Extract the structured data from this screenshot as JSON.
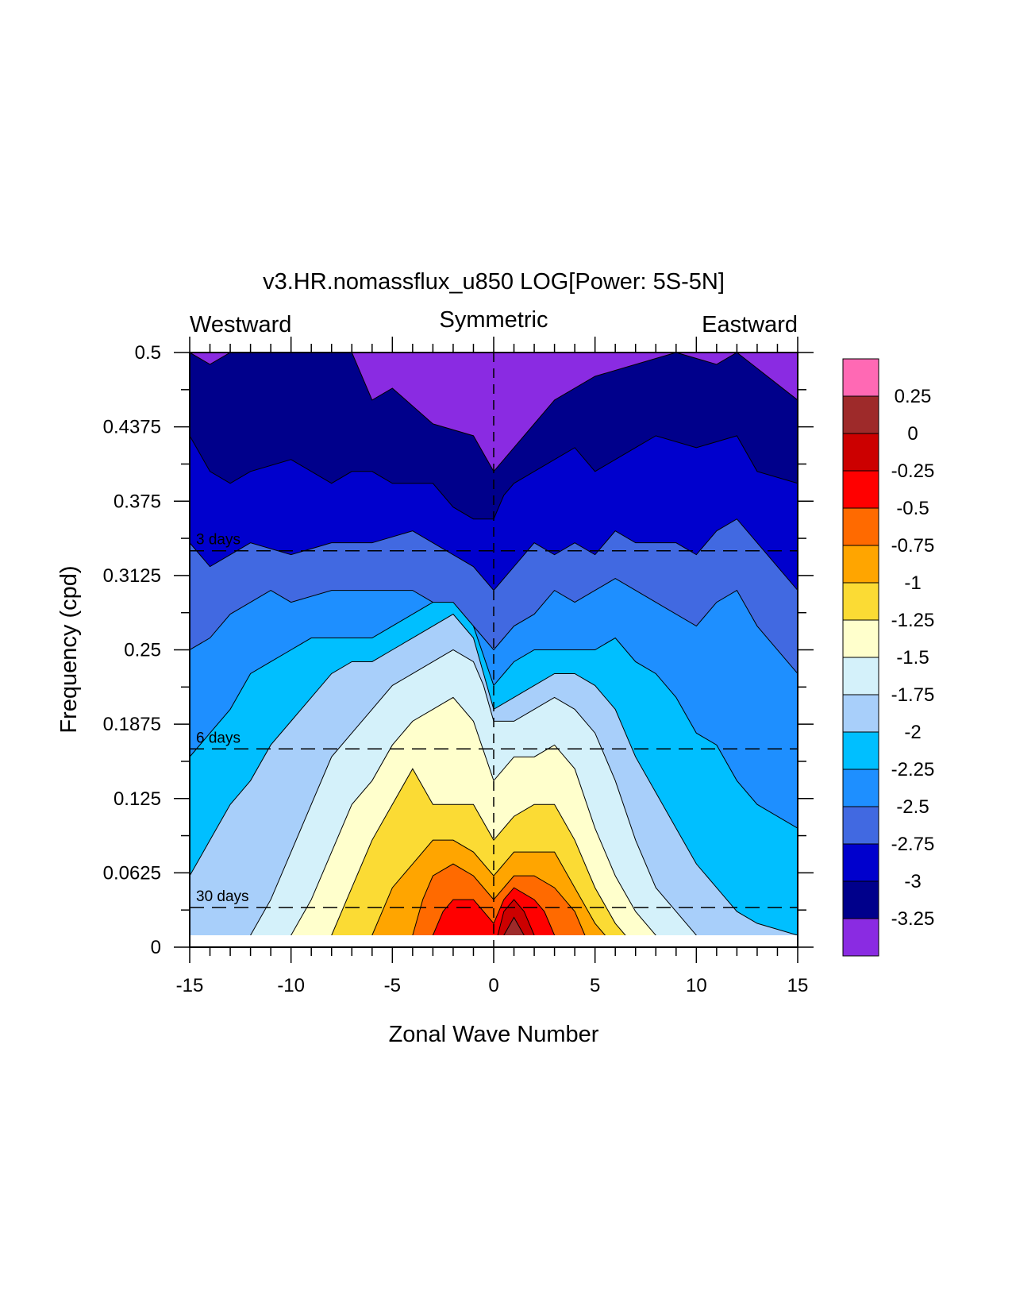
{
  "chart_data": {
    "type": "filled-contour",
    "title": "v3.HR.nomassflux_u850 LOG[Power: 5S-5N]",
    "xlabel": "Zonal Wave Number",
    "ylabel": "Frequency (cpd)",
    "xlim": [
      -15,
      15
    ],
    "ylim": [
      0,
      0.5
    ],
    "x_ticks": [
      -15,
      -10,
      -5,
      0,
      5,
      10,
      15
    ],
    "x_tick_labels": [
      "-15",
      "-10",
      "-5",
      "0",
      "5",
      "10",
      "15"
    ],
    "y_ticks": [
      0,
      0.0625,
      0.125,
      0.1875,
      0.25,
      0.3125,
      0.375,
      0.4375,
      0.5
    ],
    "y_tick_labels": [
      "0",
      "0.0625",
      "0.125",
      "0.1875",
      "0.25",
      "0.3125",
      "0.375",
      "0.4375",
      "0.5"
    ],
    "top_labels": {
      "left": "Westward",
      "center": "Symmetric",
      "right": "Eastward"
    },
    "period_lines": [
      {
        "label": "3 days",
        "frequency": 0.3333
      },
      {
        "label": "6 days",
        "frequency": 0.1667
      },
      {
        "label": "30 days",
        "frequency": 0.0333
      }
    ],
    "colorbar": {
      "levels": [
        "0.25",
        "0",
        "-0.25",
        "-0.5",
        "-0.75",
        "-1",
        "-1.25",
        "-1.5",
        "-1.75",
        "-2",
        "-2.25",
        "-2.5",
        "-2.75",
        "-3",
        "-3.25"
      ],
      "colors": [
        "#FF69B4",
        "#9E2A2A",
        "#CC0000",
        "#FF0000",
        "#FF6A00",
        "#FFA500",
        "#FBDB34",
        "#FFFFCC",
        "#D4F1FA",
        "#A8CFFA",
        "#00BFFF",
        "#1E8FFF",
        "#4169E1",
        "#0000CD",
        "#00008B",
        "#8A2BE2"
      ]
    },
    "contour_bands": [
      {
        "level_above": -3.25,
        "color": "#00008B",
        "boundary": [
          [
            -15,
            0.5
          ],
          [
            -14,
            0.49
          ],
          [
            -13,
            0.5
          ],
          [
            -10,
            0.5
          ],
          [
            -7,
            0.5
          ],
          [
            -6,
            0.46
          ],
          [
            -5,
            0.47
          ],
          [
            -3,
            0.44
          ],
          [
            -1,
            0.43
          ],
          [
            0,
            0.4
          ],
          [
            1,
            0.42
          ],
          [
            2,
            0.44
          ],
          [
            3,
            0.46
          ],
          [
            4,
            0.47
          ],
          [
            5,
            0.48
          ],
          [
            7,
            0.49
          ],
          [
            9,
            0.5
          ],
          [
            11,
            0.49
          ],
          [
            12,
            0.5
          ],
          [
            15,
            0.46
          ]
        ]
      },
      {
        "level_above": -3.0,
        "color": "#0000CD",
        "boundary": [
          [
            -15,
            0.43
          ],
          [
            -14,
            0.4
          ],
          [
            -13,
            0.39
          ],
          [
            -12,
            0.4
          ],
          [
            -10,
            0.41
          ],
          [
            -8,
            0.39
          ],
          [
            -7,
            0.4
          ],
          [
            -6,
            0.4
          ],
          [
            -5,
            0.39
          ],
          [
            -3,
            0.39
          ],
          [
            -2,
            0.37
          ],
          [
            -1,
            0.36
          ],
          [
            0,
            0.36
          ],
          [
            0.5,
            0.38
          ],
          [
            1,
            0.39
          ],
          [
            2,
            0.4
          ],
          [
            3,
            0.41
          ],
          [
            4,
            0.42
          ],
          [
            5,
            0.4
          ],
          [
            6,
            0.41
          ],
          [
            7,
            0.42
          ],
          [
            8,
            0.43
          ],
          [
            10,
            0.42
          ],
          [
            12,
            0.43
          ],
          [
            13,
            0.4
          ],
          [
            15,
            0.39
          ]
        ]
      },
      {
        "level_above": -2.75,
        "color": "#4169E1",
        "boundary": [
          [
            -15,
            0.34
          ],
          [
            -14,
            0.32
          ],
          [
            -13,
            0.33
          ],
          [
            -12,
            0.34
          ],
          [
            -10,
            0.33
          ],
          [
            -8,
            0.34
          ],
          [
            -6,
            0.34
          ],
          [
            -4,
            0.35
          ],
          [
            -3,
            0.34
          ],
          [
            -2,
            0.33
          ],
          [
            -1,
            0.32
          ],
          [
            0,
            0.3
          ],
          [
            1,
            0.32
          ],
          [
            2,
            0.34
          ],
          [
            3,
            0.33
          ],
          [
            4,
            0.34
          ],
          [
            5,
            0.33
          ],
          [
            6,
            0.35
          ],
          [
            7,
            0.34
          ],
          [
            9,
            0.34
          ],
          [
            10,
            0.33
          ],
          [
            11,
            0.35
          ],
          [
            12,
            0.36
          ],
          [
            13,
            0.34
          ],
          [
            15,
            0.3
          ]
        ]
      },
      {
        "level_above": -2.5,
        "color": "#1E8FFF",
        "boundary": [
          [
            -15,
            0.25
          ],
          [
            -14,
            0.26
          ],
          [
            -13,
            0.28
          ],
          [
            -12,
            0.29
          ],
          [
            -11,
            0.3
          ],
          [
            -10,
            0.29
          ],
          [
            -8,
            0.3
          ],
          [
            -6,
            0.3
          ],
          [
            -4,
            0.3
          ],
          [
            -3,
            0.29
          ],
          [
            -2,
            0.28
          ],
          [
            -1,
            0.27
          ],
          [
            0,
            0.25
          ],
          [
            1,
            0.27
          ],
          [
            2,
            0.28
          ],
          [
            3,
            0.3
          ],
          [
            4,
            0.29
          ],
          [
            5,
            0.3
          ],
          [
            6,
            0.31
          ],
          [
            8,
            0.29
          ],
          [
            10,
            0.27
          ],
          [
            11,
            0.29
          ],
          [
            12,
            0.3
          ],
          [
            13,
            0.27
          ],
          [
            15,
            0.23
          ]
        ]
      },
      {
        "level_above": -2.25,
        "color": "#00BFFF",
        "boundary": [
          [
            -15,
            0.16
          ],
          [
            -14,
            0.18
          ],
          [
            -13,
            0.2
          ],
          [
            -12,
            0.23
          ],
          [
            -11,
            0.24
          ],
          [
            -10,
            0.25
          ],
          [
            -9,
            0.26
          ],
          [
            -8,
            0.26
          ],
          [
            -6,
            0.26
          ],
          [
            -5,
            0.27
          ],
          [
            -4,
            0.28
          ],
          [
            -3,
            0.29
          ],
          [
            -2,
            0.29
          ],
          [
            -1,
            0.27
          ],
          [
            0,
            0.22
          ],
          [
            1,
            0.24
          ],
          [
            2,
            0.25
          ],
          [
            3,
            0.25
          ],
          [
            4,
            0.25
          ],
          [
            5,
            0.25
          ],
          [
            6,
            0.26
          ],
          [
            7,
            0.24
          ],
          [
            8,
            0.23
          ],
          [
            9,
            0.21
          ],
          [
            10,
            0.18
          ],
          [
            11,
            0.17
          ],
          [
            12,
            0.14
          ],
          [
            13,
            0.12
          ],
          [
            15,
            0.1
          ]
        ]
      },
      {
        "level_above": -2.0,
        "color": "#A8CFFA",
        "boundary": [
          [
            -15,
            0.06
          ],
          [
            -14,
            0.09
          ],
          [
            -13,
            0.12
          ],
          [
            -12,
            0.14
          ],
          [
            -11,
            0.17
          ],
          [
            -10,
            0.19
          ],
          [
            -9,
            0.21
          ],
          [
            -8,
            0.23
          ],
          [
            -7,
            0.24
          ],
          [
            -6,
            0.24
          ],
          [
            -5,
            0.25
          ],
          [
            -4,
            0.26
          ],
          [
            -3,
            0.27
          ],
          [
            -2,
            0.28
          ],
          [
            -1,
            0.26
          ],
          [
            0,
            0.2
          ],
          [
            1,
            0.21
          ],
          [
            2,
            0.22
          ],
          [
            3,
            0.23
          ],
          [
            4,
            0.23
          ],
          [
            5,
            0.22
          ],
          [
            6,
            0.2
          ],
          [
            7,
            0.16
          ],
          [
            8,
            0.13
          ],
          [
            9,
            0.1
          ],
          [
            10,
            0.07
          ],
          [
            11,
            0.05
          ],
          [
            12,
            0.03
          ],
          [
            13,
            0.02
          ],
          [
            15,
            0.01
          ]
        ]
      },
      {
        "level_above": -1.75,
        "color": "#D4F1FA",
        "boundary": [
          [
            -12,
            0.01
          ],
          [
            -11,
            0.04
          ],
          [
            -10,
            0.08
          ],
          [
            -9,
            0.12
          ],
          [
            -8,
            0.16
          ],
          [
            -7,
            0.18
          ],
          [
            -6,
            0.2
          ],
          [
            -5,
            0.22
          ],
          [
            -4,
            0.23
          ],
          [
            -3,
            0.24
          ],
          [
            -2,
            0.25
          ],
          [
            -1,
            0.24
          ],
          [
            -0.5,
            0.22
          ],
          [
            0,
            0.19
          ],
          [
            1,
            0.19
          ],
          [
            2,
            0.2
          ],
          [
            3,
            0.21
          ],
          [
            4,
            0.2
          ],
          [
            5,
            0.18
          ],
          [
            6,
            0.14
          ],
          [
            7,
            0.09
          ],
          [
            8,
            0.05
          ],
          [
            9,
            0.03
          ],
          [
            10,
            0.01
          ]
        ]
      },
      {
        "level_above": -1.5,
        "color": "#FFFFCC",
        "boundary": [
          [
            -10,
            0.01
          ],
          [
            -9,
            0.04
          ],
          [
            -8,
            0.08
          ],
          [
            -7,
            0.12
          ],
          [
            -6,
            0.14
          ],
          [
            -5,
            0.17
          ],
          [
            -4,
            0.19
          ],
          [
            -3,
            0.2
          ],
          [
            -2,
            0.21
          ],
          [
            -1,
            0.19
          ],
          [
            0,
            0.14
          ],
          [
            1,
            0.16
          ],
          [
            2,
            0.16
          ],
          [
            3,
            0.17
          ],
          [
            4,
            0.15
          ],
          [
            5,
            0.1
          ],
          [
            6,
            0.06
          ],
          [
            7,
            0.03
          ],
          [
            8,
            0.01
          ]
        ]
      },
      {
        "level_above": -1.25,
        "color": "#FBDB34",
        "boundary": [
          [
            -8,
            0.01
          ],
          [
            -7,
            0.05
          ],
          [
            -6,
            0.09
          ],
          [
            -5,
            0.12
          ],
          [
            -4,
            0.15
          ],
          [
            -3,
            0.12
          ],
          [
            -2,
            0.12
          ],
          [
            -1,
            0.12
          ],
          [
            0,
            0.09
          ],
          [
            1,
            0.11
          ],
          [
            2,
            0.12
          ],
          [
            3,
            0.12
          ],
          [
            4,
            0.09
          ],
          [
            5,
            0.05
          ],
          [
            6,
            0.02
          ],
          [
            6.5,
            0.01
          ]
        ]
      },
      {
        "level_above": -1.0,
        "color": "#FFA500",
        "boundary": [
          [
            -6,
            0.01
          ],
          [
            -5,
            0.05
          ],
          [
            -4,
            0.07
          ],
          [
            -3,
            0.09
          ],
          [
            -2,
            0.09
          ],
          [
            -1,
            0.08
          ],
          [
            0,
            0.06
          ],
          [
            1,
            0.08
          ],
          [
            2,
            0.08
          ],
          [
            3,
            0.08
          ],
          [
            4,
            0.05
          ],
          [
            5,
            0.02
          ],
          [
            5.5,
            0.01
          ]
        ]
      },
      {
        "level_above": -0.75,
        "color": "#FF6A00",
        "boundary": [
          [
            -4,
            0.01
          ],
          [
            -3.5,
            0.04
          ],
          [
            -3,
            0.06
          ],
          [
            -2,
            0.07
          ],
          [
            -1,
            0.06
          ],
          [
            0,
            0.04
          ],
          [
            1,
            0.06
          ],
          [
            2,
            0.06
          ],
          [
            3,
            0.05
          ],
          [
            4,
            0.03
          ],
          [
            4.5,
            0.01
          ]
        ]
      },
      {
        "level_above": -0.5,
        "color": "#FF0000",
        "boundary": [
          [
            -3,
            0.01
          ],
          [
            -2.5,
            0.03
          ],
          [
            -2,
            0.04
          ],
          [
            -1,
            0.04
          ],
          [
            -0.5,
            0.03
          ],
          [
            0,
            0.02
          ],
          [
            0.5,
            0.04
          ],
          [
            1,
            0.05
          ],
          [
            2,
            0.04
          ],
          [
            2.5,
            0.03
          ],
          [
            3,
            0.01
          ]
        ]
      },
      {
        "level_above": -0.25,
        "color": "#CC0000",
        "boundary": [
          [
            0.2,
            0.01
          ],
          [
            0.5,
            0.03
          ],
          [
            1,
            0.04
          ],
          [
            1.5,
            0.03
          ],
          [
            2,
            0.01
          ]
        ]
      },
      {
        "level_above": 0.0,
        "color": "#9E2A2A",
        "boundary": [
          [
            0.5,
            0.01
          ],
          [
            1,
            0.025
          ],
          [
            1.5,
            0.01
          ]
        ]
      }
    ]
  }
}
